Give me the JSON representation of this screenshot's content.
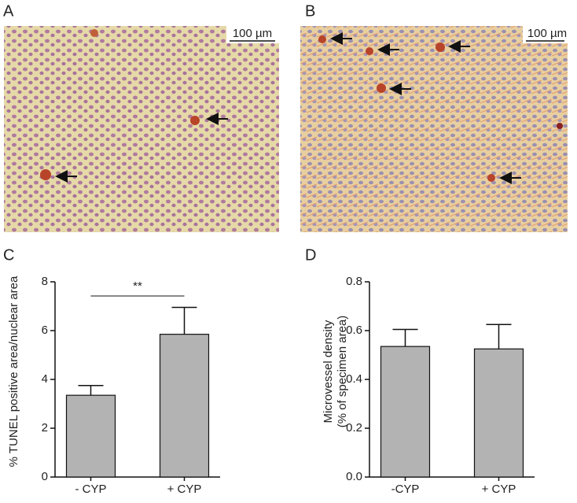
{
  "panels": {
    "a": {
      "label": "A",
      "scale_bar": "100 µm"
    },
    "b": {
      "label": "B",
      "scale_bar": "100 µm"
    },
    "c": {
      "label": "C"
    },
    "d": {
      "label": "D"
    }
  },
  "chart_data": [
    {
      "type": "bar",
      "ylabel": [
        "% TUNEL positive area/nuclear area"
      ],
      "categories": [
        "- CYP",
        "+ CYP"
      ],
      "values": [
        3.35,
        5.85
      ],
      "errors": [
        0.4,
        1.1
      ],
      "color": "#b3b3b3",
      "ylim": [
        0,
        8
      ],
      "yticks": [
        0,
        2,
        4,
        6,
        8
      ],
      "annotation": "**"
    },
    {
      "type": "bar",
      "ylabel": [
        "Microvessel density",
        "(% of specimen area)"
      ],
      "categories": [
        "-CYP",
        "+ CYP"
      ],
      "values": [
        0.535,
        0.525
      ],
      "errors": [
        0.07,
        0.1
      ],
      "color": "#b3b3b3",
      "ylim": [
        0,
        0.8
      ],
      "yticks": [
        {
          "value": 0,
          "label": "0.0"
        },
        0.2,
        0.4,
        0.6,
        0.8
      ]
    }
  ]
}
